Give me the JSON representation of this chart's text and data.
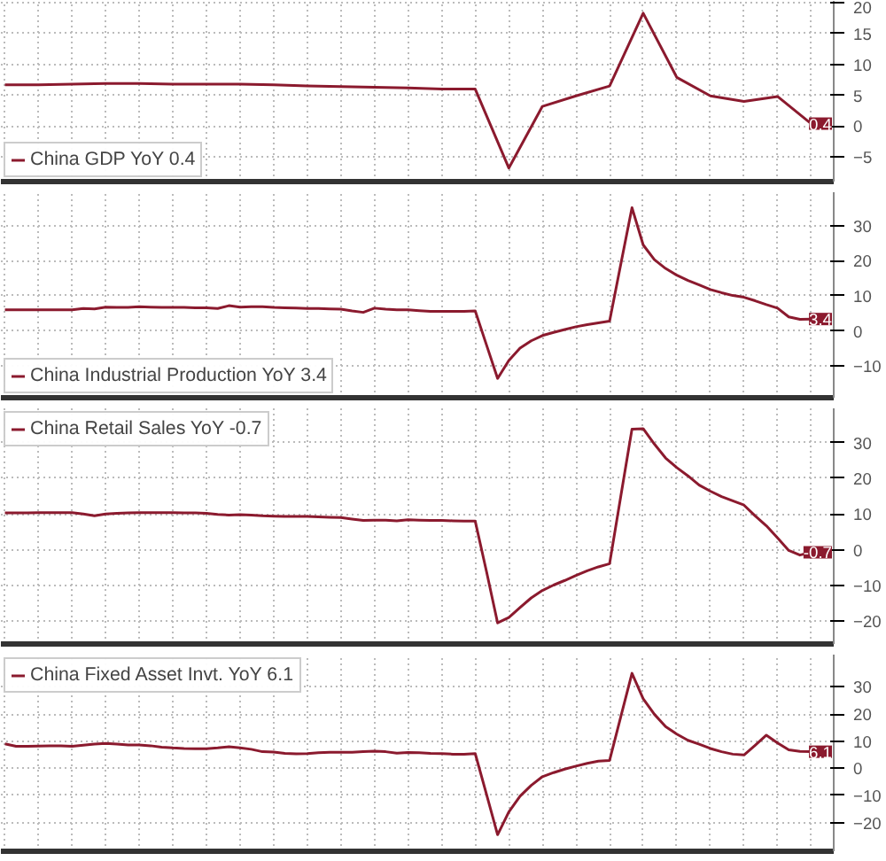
{
  "chart_data": [
    {
      "type": "line",
      "categories": [
        null,
        null,
        null,
        null,
        null,
        null,
        null,
        null,
        null,
        null,
        null,
        null,
        null,
        null,
        null,
        null,
        null,
        null,
        null,
        null,
        null,
        null,
        null,
        null,
        null
      ],
      "series": [
        {
          "name": "China GDP YoY 0.4",
          "color": "#8b1a2e",
          "values": [
            6.7,
            6.7,
            6.8,
            6.9,
            6.9,
            6.8,
            6.8,
            6.8,
            6.7,
            6.5,
            6.4,
            6.3,
            6.2,
            6.0,
            6.0,
            -6.8,
            3.2,
            4.9,
            6.5,
            18.3,
            7.9,
            4.9,
            4.0,
            4.8,
            0.4
          ],
          "value_labels": [
            null,
            null,
            null,
            null,
            null,
            null,
            null,
            null,
            null,
            null,
            null,
            null,
            null,
            null,
            null,
            null,
            null,
            null,
            null,
            null,
            null,
            null,
            null,
            null,
            "0.4"
          ]
        }
      ],
      "ylim": [
        -9,
        20.3
      ],
      "yticks": [
        -5,
        0,
        5,
        10,
        15,
        20
      ],
      "grid": true,
      "legend": "bottom left",
      "tick_labels": "y"
    },
    {
      "type": "line",
      "categories": [
        null,
        null,
        null,
        null,
        null,
        null,
        null,
        null,
        null,
        null,
        null,
        null,
        null,
        null,
        null,
        null,
        null,
        null,
        null,
        null,
        null,
        null,
        null,
        null,
        null,
        null,
        null,
        null,
        null,
        null,
        null,
        null,
        null,
        null,
        null,
        null,
        null,
        null,
        null,
        null,
        null,
        null,
        null,
        null,
        null,
        null,
        null,
        null,
        null,
        null,
        null,
        null,
        null,
        null,
        null,
        null,
        null,
        null,
        null,
        null,
        null,
        null,
        null,
        null,
        null,
        null,
        null,
        null,
        null,
        null,
        null,
        null,
        null
      ],
      "series": [
        {
          "name": "China Industrial Production YoY 3.4",
          "color": "#8b1a2e",
          "values": [
            6.0,
            6.0,
            6.0,
            6.0,
            6.0,
            6.0,
            6.0,
            6.4,
            6.3,
            6.8,
            6.7,
            6.7,
            6.9,
            6.8,
            6.7,
            6.7,
            6.7,
            6.6,
            6.6,
            6.4,
            7.2,
            6.8,
            6.9,
            6.9,
            6.7,
            6.6,
            6.5,
            6.4,
            6.4,
            6.3,
            6.2,
            5.7,
            5.3,
            6.5,
            6.2,
            6.0,
            6.0,
            5.8,
            5.6,
            5.6,
            5.6,
            5.6,
            5.7,
            -3.9,
            -13.5,
            -8.4,
            -4.9,
            -2.8,
            -1.3,
            -0.4,
            0.4,
            1.2,
            1.8,
            2.3,
            2.8,
            19.0,
            35.1,
            24.5,
            20.3,
            17.8,
            15.9,
            14.4,
            13.1,
            11.8,
            10.9,
            10.1,
            9.6,
            8.6,
            7.5,
            6.5,
            4.0,
            3.3,
            3.4
          ],
          "value_labels": [
            null,
            null,
            null,
            null,
            null,
            null,
            null,
            null,
            null,
            null,
            null,
            null,
            null,
            null,
            null,
            null,
            null,
            null,
            null,
            null,
            null,
            null,
            null,
            null,
            null,
            null,
            null,
            null,
            null,
            null,
            null,
            null,
            null,
            null,
            null,
            null,
            null,
            null,
            null,
            null,
            null,
            null,
            null,
            null,
            null,
            null,
            null,
            null,
            null,
            null,
            null,
            null,
            null,
            null,
            null,
            null,
            null,
            null,
            null,
            null,
            null,
            null,
            null,
            null,
            null,
            null,
            null,
            null,
            null,
            null,
            null,
            null,
            "3.4"
          ]
        }
      ],
      "ylim": [
        -19,
        39.5
      ],
      "yticks": [
        -10,
        0,
        10,
        20,
        30
      ],
      "grid": true,
      "legend": "bottom left",
      "tick_labels": "y"
    },
    {
      "type": "line",
      "categories": [
        null,
        null,
        null,
        null,
        null,
        null,
        null,
        null,
        null,
        null,
        null,
        null,
        null,
        null,
        null,
        null,
        null,
        null,
        null,
        null,
        null,
        null,
        null,
        null,
        null,
        null,
        null,
        null,
        null,
        null,
        null,
        null,
        null,
        null,
        null,
        null,
        null,
        null,
        null,
        null,
        null,
        null,
        null,
        null,
        null,
        null,
        null,
        null,
        null,
        null,
        null,
        null,
        null,
        null,
        null,
        null,
        null,
        null,
        null,
        null,
        null,
        null,
        null,
        null,
        null,
        null,
        null,
        null,
        null,
        null,
        null,
        null,
        null
      ],
      "series": [
        {
          "name": "China Retail Sales YoY -0.7",
          "color": "#8b1a2e",
          "values": [
            10.3,
            10.3,
            10.3,
            10.4,
            10.4,
            10.4,
            10.4,
            10.0,
            9.5,
            10.0,
            10.2,
            10.3,
            10.4,
            10.4,
            10.4,
            10.4,
            10.3,
            10.3,
            10.2,
            9.9,
            9.7,
            9.8,
            9.7,
            9.5,
            9.4,
            9.3,
            9.3,
            9.3,
            9.2,
            9.1,
            9.0,
            8.6,
            8.2,
            8.3,
            8.3,
            8.1,
            8.4,
            8.3,
            8.2,
            8.2,
            8.1,
            8.0,
            8.0,
            -6.0,
            -20.5,
            -19.0,
            -16.2,
            -13.5,
            -11.4,
            -9.9,
            -8.6,
            -7.2,
            -5.9,
            -4.8,
            -3.9,
            15.0,
            33.8,
            33.9,
            29.6,
            25.7,
            23.0,
            20.7,
            18.1,
            16.4,
            14.9,
            13.7,
            12.5,
            9.5,
            6.7,
            3.3,
            -0.2,
            -1.5,
            -0.7
          ],
          "value_labels": [
            null,
            null,
            null,
            null,
            null,
            null,
            null,
            null,
            null,
            null,
            null,
            null,
            null,
            null,
            null,
            null,
            null,
            null,
            null,
            null,
            null,
            null,
            null,
            null,
            null,
            null,
            null,
            null,
            null,
            null,
            null,
            null,
            null,
            null,
            null,
            null,
            null,
            null,
            null,
            null,
            null,
            null,
            null,
            null,
            null,
            null,
            null,
            null,
            null,
            null,
            null,
            null,
            null,
            null,
            null,
            null,
            null,
            null,
            null,
            null,
            null,
            null,
            null,
            null,
            null,
            null,
            null,
            null,
            null,
            null,
            null,
            null,
            "-0.7"
          ]
        }
      ],
      "ylim": [
        -26.4,
        39.6
      ],
      "yticks": [
        -20,
        -10,
        0,
        10,
        20,
        30
      ],
      "grid": true,
      "legend": "top left",
      "tick_labels": "y"
    },
    {
      "type": "line",
      "categories": [
        null,
        null,
        null,
        null,
        null,
        null,
        null,
        null,
        null,
        null,
        null,
        null,
        null,
        null,
        null,
        null,
        null,
        null,
        null,
        null,
        null,
        null,
        null,
        null,
        null,
        null,
        null,
        null,
        null,
        null,
        null,
        null,
        null,
        null,
        null,
        null,
        null,
        null,
        null,
        null,
        null,
        null,
        null,
        null,
        null,
        null,
        null,
        null,
        null,
        null,
        null,
        null,
        null,
        null,
        null,
        null,
        null,
        null,
        null,
        null,
        null,
        null,
        null,
        null,
        null,
        null,
        null,
        null,
        null,
        null,
        null,
        null,
        null
      ],
      "series": [
        {
          "name": "China Fixed Asset Invt. YoY 6.1",
          "color": "#8b1a2e",
          "values": [
            9.0,
            8.1,
            8.1,
            8.2,
            8.3,
            8.3,
            8.1,
            8.5,
            8.9,
            9.2,
            8.9,
            8.6,
            8.6,
            8.3,
            7.8,
            7.5,
            7.3,
            7.2,
            7.2,
            7.5,
            7.9,
            7.5,
            7.0,
            6.1,
            6.0,
            5.5,
            5.3,
            5.4,
            5.7,
            5.9,
            5.9,
            5.9,
            6.1,
            6.3,
            6.1,
            5.6,
            5.8,
            5.7,
            5.5,
            5.4,
            5.2,
            5.2,
            5.4,
            -9.5,
            -24.5,
            -16.1,
            -10.3,
            -6.3,
            -3.1,
            -1.6,
            -0.3,
            0.8,
            1.8,
            2.6,
            2.9,
            19.0,
            35.0,
            25.6,
            19.9,
            15.4,
            12.6,
            10.3,
            8.9,
            7.3,
            6.1,
            5.2,
            4.9,
            8.5,
            12.2,
            9.3,
            6.8,
            6.2,
            6.1
          ],
          "value_labels": [
            null,
            null,
            null,
            null,
            null,
            null,
            null,
            null,
            null,
            null,
            null,
            null,
            null,
            null,
            null,
            null,
            null,
            null,
            null,
            null,
            null,
            null,
            null,
            null,
            null,
            null,
            null,
            null,
            null,
            null,
            null,
            null,
            null,
            null,
            null,
            null,
            null,
            null,
            null,
            null,
            null,
            null,
            null,
            null,
            null,
            null,
            null,
            null,
            null,
            null,
            null,
            null,
            null,
            null,
            null,
            null,
            null,
            null,
            null,
            null,
            null,
            null,
            null,
            null,
            null,
            null,
            null,
            null,
            null,
            null,
            null,
            null,
            "6.1"
          ]
        }
      ],
      "ylim": [
        -30.6,
        41.9
      ],
      "yticks": [
        -20,
        -10,
        0,
        10,
        20,
        30
      ],
      "grid": true,
      "legend": "top left",
      "tick_labels": "y"
    }
  ]
}
